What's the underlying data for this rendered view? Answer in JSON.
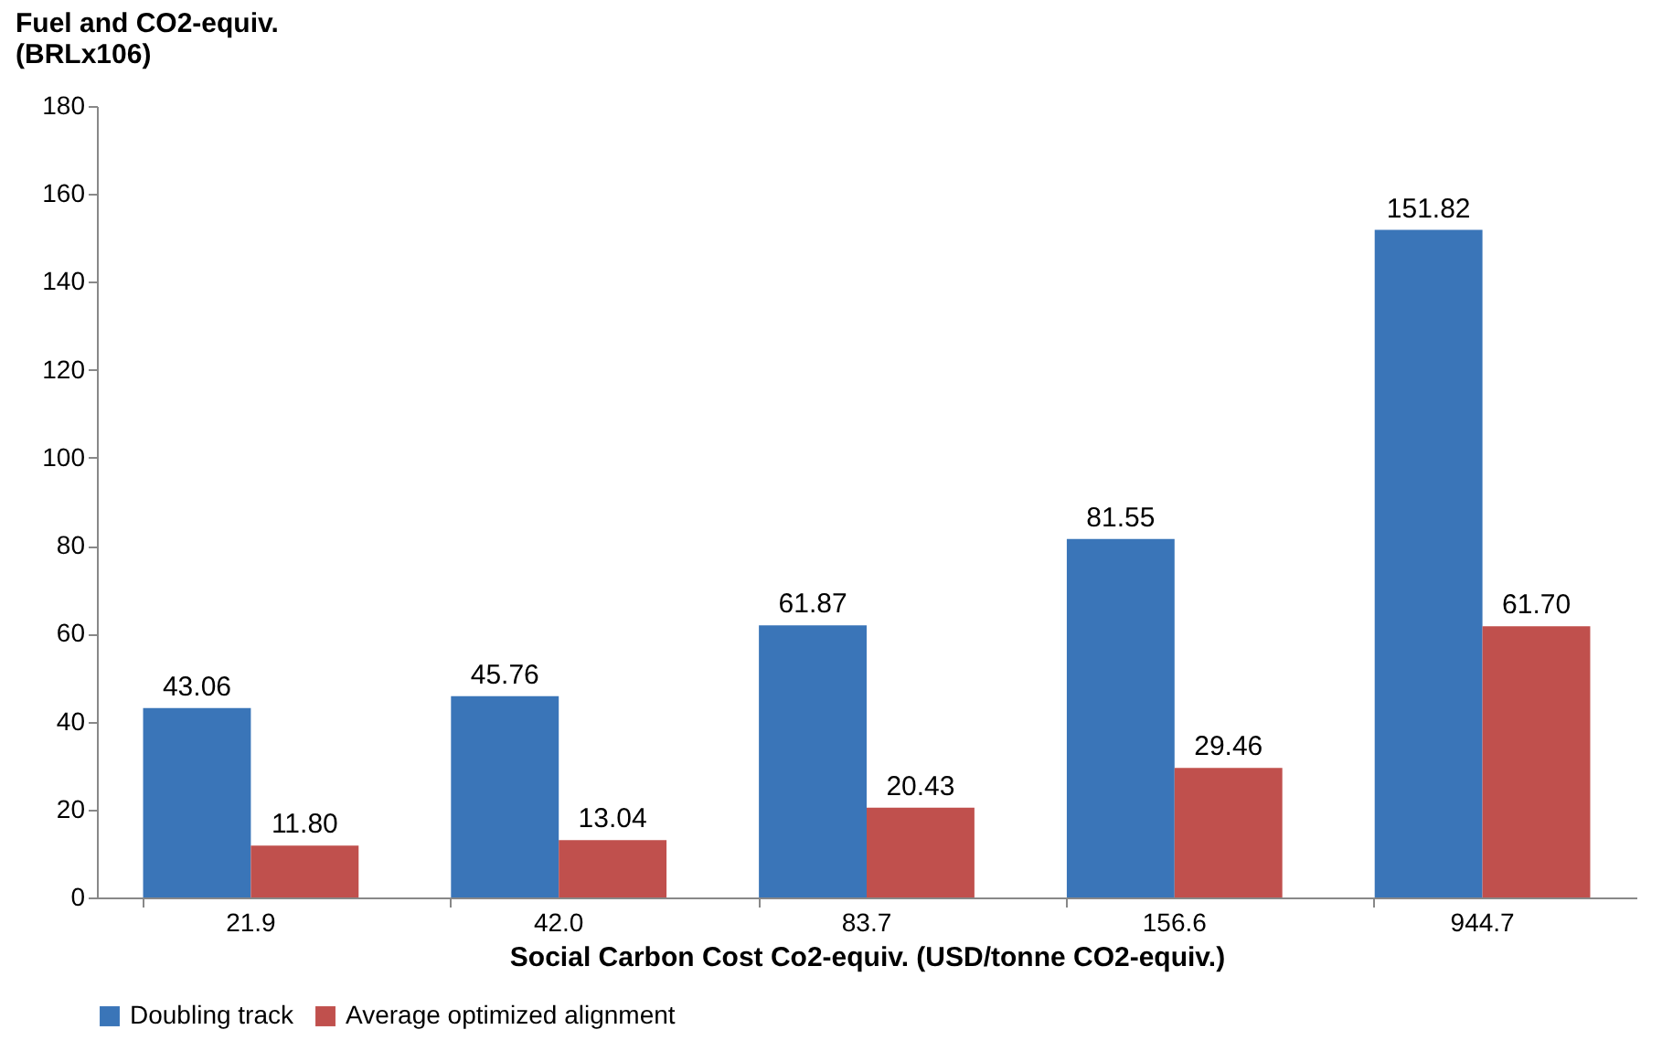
{
  "chart_data": {
    "type": "bar",
    "xlabel": "Social Carbon Cost Co2-equiv. (USD/tonne CO2-equiv.)",
    "ylabel": "Fuel and CO2-equiv.\n(BRLx106)",
    "categories": [
      "21.9",
      "42.0",
      "83.7",
      "156.6",
      "944.7"
    ],
    "series": [
      {
        "name": "Doubling track",
        "color": "#3a75b8",
        "values": [
          43.06,
          45.76,
          61.87,
          81.55,
          151.82
        ],
        "value_labels": [
          "43.06",
          "45.76",
          "61.87",
          "81.55",
          "151.82"
        ]
      },
      {
        "name": "Average optimized alignment",
        "color": "#c0504d",
        "values": [
          11.8,
          13.04,
          20.43,
          29.46,
          61.7
        ],
        "value_labels": [
          "11.80",
          "13.04",
          "20.43",
          "29.46",
          "61.70"
        ]
      }
    ],
    "ylim": [
      0,
      180
    ],
    "yticks": [
      0,
      20,
      40,
      60,
      80,
      100,
      120,
      140,
      160,
      180
    ],
    "grid": false,
    "legend": "bottom"
  }
}
